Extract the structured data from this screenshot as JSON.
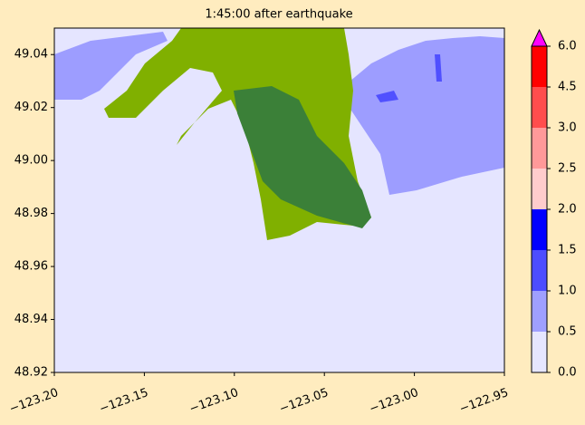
{
  "chart_data": {
    "type": "map",
    "title": "1:45:00 after earthquake",
    "xlim": [
      -123.2,
      -122.95
    ],
    "xticks": [
      {
        "value": -123.2,
        "label": "−123.20"
      },
      {
        "value": -123.15,
        "label": "−123.15"
      },
      {
        "value": -123.1,
        "label": "−123.10"
      },
      {
        "value": -123.05,
        "label": "−123.05"
      },
      {
        "value": -123.0,
        "label": "−123.00"
      },
      {
        "value": -122.95,
        "label": "−122.95"
      }
    ],
    "ylim": [
      48.92,
      49.05
    ],
    "yticks": [
      48.92,
      48.94,
      48.96,
      48.98,
      {
        "value": 49.0,
        "label": "49.00"
      },
      49.02,
      49.04
    ],
    "colorbar": {
      "levels": [
        {
          "value": 0,
          "label": "0.0"
        },
        {
          "value": 0.5,
          "label": "0.5"
        },
        {
          "value": 1,
          "label": "1.0"
        },
        {
          "value": 1.5,
          "label": "1.5"
        },
        {
          "value": 2,
          "label": "2.0"
        },
        {
          "value": 2.5,
          "label": "2.5"
        },
        {
          "value": 3,
          "label": "3.0"
        },
        {
          "value": 4.5,
          "label": "4.5"
        },
        {
          "value": 6,
          "label": "6.0"
        }
      ],
      "colors": [
        "#e6e6ff",
        "#9f9fff",
        "#4d4dff",
        "#0000ff",
        "#ffcccc",
        "#ff9999",
        "#ff4d4d",
        "#ff0000"
      ],
      "extend_color": "#ff00ff"
    }
  }
}
